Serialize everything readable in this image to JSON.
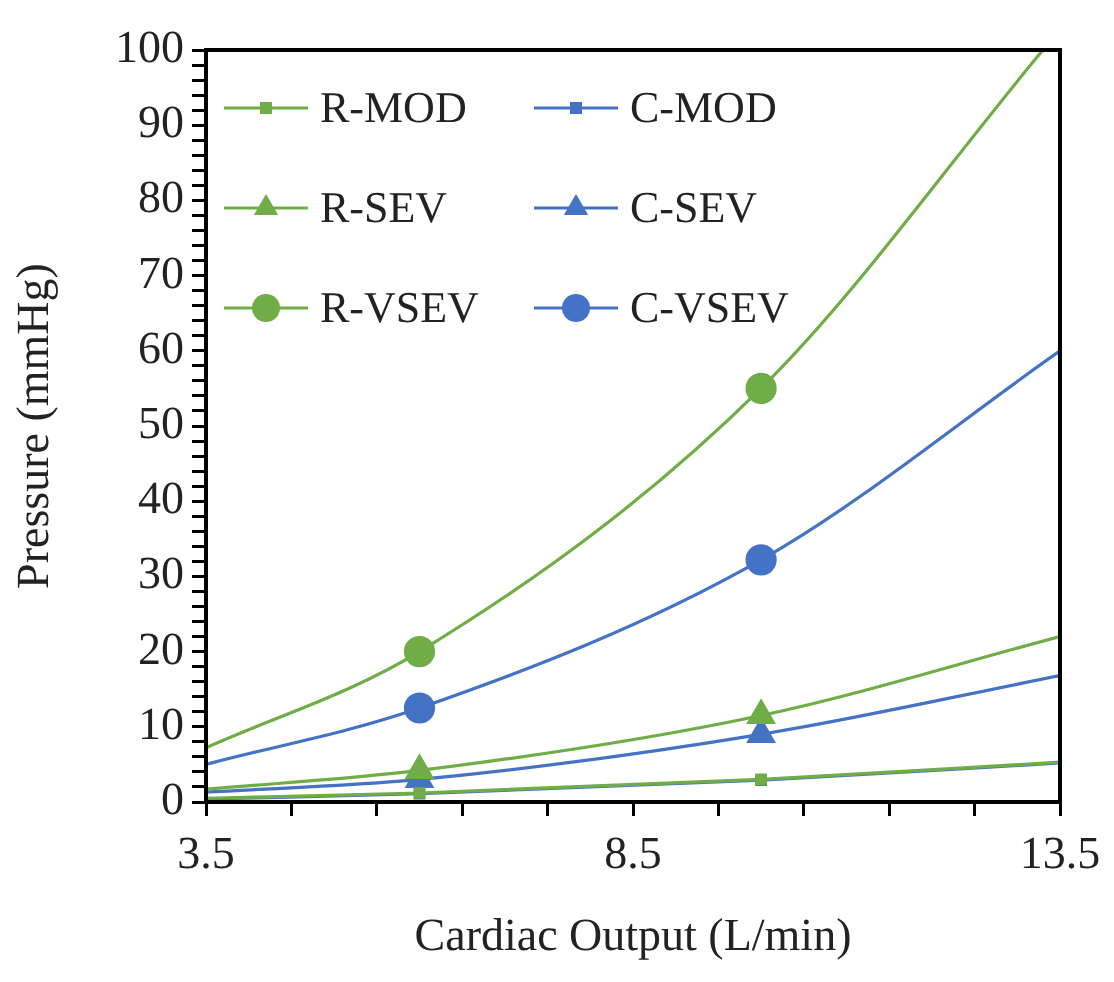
{
  "chart_data": {
    "type": "line",
    "xlabel": "Cardiac Output (L/min)",
    "ylabel": "Pressure (mmHg)",
    "xlim": [
      3.5,
      13.5
    ],
    "xticks": [
      3.5,
      {
        "value": 4.5,
        "label": null
      },
      {
        "value": 5.5,
        "label": null
      },
      {
        "value": 6.5,
        "label": null
      },
      {
        "value": 7.5,
        "label": null
      },
      8.5,
      {
        "value": 9.5,
        "label": null
      },
      {
        "value": 10.5,
        "label": null
      },
      {
        "value": 11.5,
        "label": null
      },
      {
        "value": 12.5,
        "label": null
      },
      13.5
    ],
    "ylim": [
      0,
      100
    ],
    "yticks": [
      0,
      {
        "value": 2,
        "label": null
      },
      {
        "value": 4,
        "label": null
      },
      {
        "value": 6,
        "label": null
      },
      {
        "value": 8,
        "label": null
      },
      10,
      {
        "value": 12,
        "label": null
      },
      {
        "value": 14,
        "label": null
      },
      {
        "value": 16,
        "label": null
      },
      {
        "value": 18,
        "label": null
      },
      20,
      {
        "value": 22,
        "label": null
      },
      {
        "value": 24,
        "label": null
      },
      {
        "value": 26,
        "label": null
      },
      {
        "value": 28,
        "label": null
      },
      30,
      {
        "value": 32,
        "label": null
      },
      {
        "value": 34,
        "label": null
      },
      {
        "value": 36,
        "label": null
      },
      {
        "value": 38,
        "label": null
      },
      40,
      {
        "value": 42,
        "label": null
      },
      {
        "value": 44,
        "label": null
      },
      {
        "value": 46,
        "label": null
      },
      {
        "value": 48,
        "label": null
      },
      50,
      {
        "value": 52,
        "label": null
      },
      {
        "value": 54,
        "label": null
      },
      {
        "value": 56,
        "label": null
      },
      {
        "value": 58,
        "label": null
      },
      60,
      {
        "value": 62,
        "label": null
      },
      {
        "value": 64,
        "label": null
      },
      {
        "value": 66,
        "label": null
      },
      {
        "value": 68,
        "label": null
      },
      70,
      {
        "value": 72,
        "label": null
      },
      {
        "value": 74,
        "label": null
      },
      {
        "value": 76,
        "label": null
      },
      {
        "value": 78,
        "label": null
      },
      80,
      {
        "value": 82,
        "label": null
      },
      {
        "value": 84,
        "label": null
      },
      {
        "value": 86,
        "label": null
      },
      {
        "value": 88,
        "label": null
      },
      90,
      {
        "value": 92,
        "label": null
      },
      {
        "value": 94,
        "label": null
      },
      {
        "value": 96,
        "label": null
      },
      {
        "value": 98,
        "label": null
      },
      100
    ],
    "grid": false,
    "legend": "top left",
    "line_style": "solid",
    "series": [
      {
        "name": "R-MOD",
        "color": "#70ad47",
        "marker": "square",
        "x": [
          3.5,
          6,
          10,
          13.5
        ],
        "values": [
          0.5,
          1.2,
          3,
          5.3
        ]
      },
      {
        "name": "C-MOD",
        "color": "#4472c4",
        "marker": "square",
        "x": [
          3.5,
          6,
          10,
          13.5
        ],
        "values": [
          0.4,
          1.1,
          2.9,
          5.2
        ]
      },
      {
        "name": "R-SEV",
        "color": "#70ad47",
        "marker": "triangle",
        "x": [
          3.5,
          6,
          10,
          13.5
        ],
        "values": [
          1.7,
          4.2,
          11.5,
          22
        ]
      },
      {
        "name": "C-SEV",
        "color": "#4472c4",
        "marker": "triangle",
        "x": [
          3.5,
          6,
          10,
          13.5
        ],
        "values": [
          1.3,
          3,
          9,
          16.8
        ]
      },
      {
        "name": "R-VSEV",
        "color": "#70ad47",
        "marker": "circle",
        "x": [
          3.5,
          6,
          10,
          13.3
        ],
        "values": [
          7.2,
          20,
          55,
          100
        ]
      },
      {
        "name": "C-VSEV",
        "color": "#4472c4",
        "marker": "circle",
        "x": [
          3.5,
          6,
          10,
          13.5
        ],
        "values": [
          5,
          12.5,
          32.2,
          60
        ]
      }
    ]
  }
}
